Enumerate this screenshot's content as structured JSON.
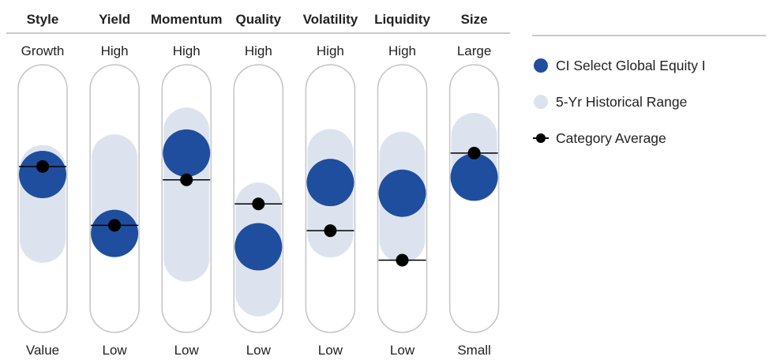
{
  "colors": {
    "fund": "#1f4e9e",
    "range": "#dde3ee",
    "category": "#000000",
    "track_border": "#c4c4c4",
    "rule": "#c9c9c9"
  },
  "legend": {
    "fund_label": "CI Select Global Equity I",
    "range_label": "5-Yr Historical Range",
    "category_label": "Category Average"
  },
  "chart_data": {
    "type": "range-dot",
    "scale_note": "relative position, 0 = bottom label, 1 = top label",
    "factors": [
      {
        "name": "Style",
        "top": "Growth",
        "bottom": "Value",
        "fund": 0.59,
        "category": 0.62,
        "range": [
          0.26,
          0.7
        ]
      },
      {
        "name": "Yield",
        "top": "High",
        "bottom": "Low",
        "fund": 0.37,
        "category": 0.4,
        "range": [
          0.28,
          0.74
        ]
      },
      {
        "name": "Momentum",
        "top": "High",
        "bottom": "Low",
        "fund": 0.67,
        "category": 0.57,
        "range": [
          0.19,
          0.84
        ]
      },
      {
        "name": "Quality",
        "top": "High",
        "bottom": "Low",
        "fund": 0.32,
        "category": 0.48,
        "range": [
          0.06,
          0.56
        ]
      },
      {
        "name": "Volatility",
        "top": "High",
        "bottom": "Low",
        "fund": 0.56,
        "category": 0.38,
        "range": [
          0.28,
          0.76
        ]
      },
      {
        "name": "Liquidity",
        "top": "High",
        "bottom": "Low",
        "fund": 0.52,
        "category": 0.27,
        "range": [
          0.26,
          0.75
        ]
      },
      {
        "name": "Size",
        "top": "Large",
        "bottom": "Small",
        "fund": 0.58,
        "category": 0.67,
        "range": [
          0.51,
          0.82
        ]
      }
    ]
  }
}
